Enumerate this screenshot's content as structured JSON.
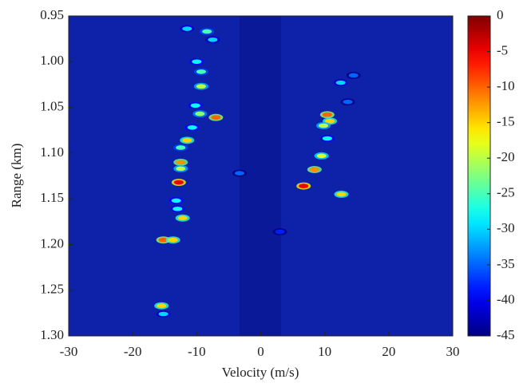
{
  "chart_data": {
    "type": "heatmap",
    "xlabel": "Velocity (m/s)",
    "ylabel": "Range (km)",
    "xlim": [
      -30,
      30
    ],
    "xticks": [
      -30,
      -20,
      -10,
      0,
      10,
      20,
      30
    ],
    "ylim": [
      0.95,
      1.3
    ],
    "y_inverted": true,
    "yticks": [
      0.95,
      {
        "value": 1,
        "label": "1.00"
      },
      1.05,
      {
        "value": 1.1,
        "label": "1.10"
      },
      1.15,
      {
        "value": 1.2,
        "label": "1.20"
      },
      1.25,
      {
        "value": 1.3,
        "label": "1.30"
      }
    ],
    "clim": [
      -45,
      0
    ],
    "cticks": [
      0,
      -5,
      -10,
      -15,
      -20,
      -25,
      -30,
      -35,
      -40,
      -45
    ],
    "colormap": "jet",
    "x": [
      -11.5,
      -8.4,
      -7.5,
      -10,
      -9.3,
      -9.3,
      -10.2,
      -9.5,
      -7,
      -10.7,
      -11.5,
      -12.5,
      -12.5,
      -12.5,
      -12.8,
      -13.2,
      -13,
      -12.2,
      -15.2,
      -13.7,
      -15.5,
      -15.2,
      12.5,
      14.5,
      10.4,
      10.8,
      9.8,
      10.4,
      9.5,
      8.4,
      6.7,
      12.6,
      13.6,
      3,
      -3.3
    ],
    "y": [
      0.964,
      0.967,
      0.976,
      1.0,
      1.011,
      1.027,
      1.048,
      1.057,
      1.061,
      1.072,
      1.086,
      1.094,
      1.11,
      1.117,
      1.132,
      1.152,
      1.161,
      1.171,
      1.195,
      1.195,
      1.267,
      1.276,
      1.023,
      1.015,
      1.058,
      1.065,
      1.07,
      1.084,
      1.103,
      1.118,
      1.136,
      1.145,
      1.044,
      1.186,
      1.122
    ],
    "values": [
      -30,
      -25,
      -30,
      -28,
      -25,
      -20,
      -28,
      -22,
      -10,
      -28,
      -15,
      -25,
      -12,
      -20,
      -5,
      -28,
      -28,
      -15,
      -10,
      -15,
      -15,
      -30,
      -30,
      -35,
      -10,
      -15,
      -20,
      -28,
      -18,
      -12,
      -5,
      -15,
      -35,
      -38,
      -35
    ]
  }
}
